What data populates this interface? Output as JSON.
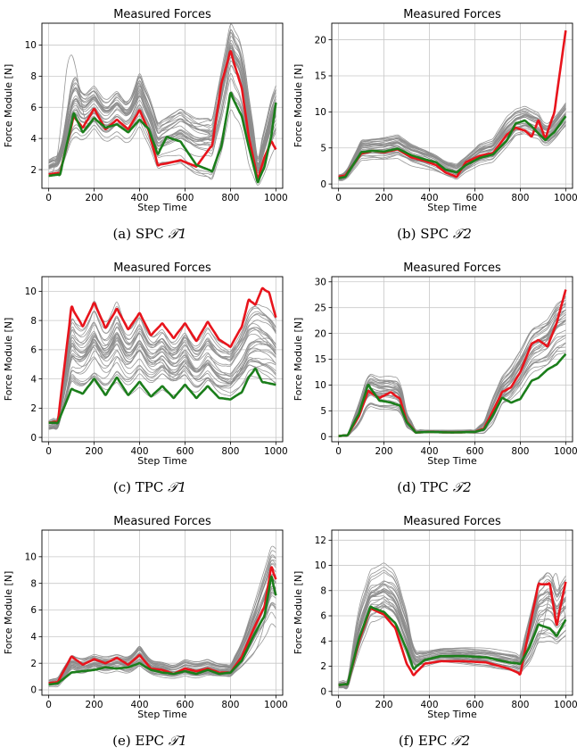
{
  "figure": {
    "panels": [
      {
        "caption_prefix": "(a) SPC",
        "caption_math": "𝒯1"
      },
      {
        "caption_prefix": "(b) SPC",
        "caption_math": "𝒯2"
      },
      {
        "caption_prefix": "(c) TPC",
        "caption_math": "𝒯1"
      },
      {
        "caption_prefix": "(d) TPC",
        "caption_math": "𝒯2"
      },
      {
        "caption_prefix": "(e) EPC",
        "caption_math": "𝒯1"
      },
      {
        "caption_prefix": "(f) EPC",
        "caption_math": "𝒯2"
      }
    ]
  },
  "colors": {
    "grey": "#8c8c8c",
    "red": "#e8141c",
    "green": "#1b7e1b",
    "grid": "#c8c8c8"
  },
  "chart_data": [
    {
      "type": "line",
      "title": "Measured Forces",
      "xlabel": "Step Time",
      "ylabel": "Force Module [N]",
      "xlim": [
        -30,
        1030
      ],
      "ylim": [
        0.8,
        11.4
      ],
      "xticks": [
        0,
        200,
        400,
        600,
        800,
        1000
      ],
      "yticks": [
        2,
        4,
        6,
        8,
        10
      ],
      "grid": true,
      "red": {
        "x": [
          0,
          50,
          110,
          150,
          200,
          250,
          300,
          350,
          400,
          440,
          480,
          520,
          580,
          650,
          720,
          760,
          800,
          850,
          880,
          920,
          950,
          980,
          1000
        ],
        "y": [
          1.7,
          1.8,
          5.4,
          4.7,
          5.9,
          4.6,
          5.2,
          4.6,
          5.8,
          4.5,
          2.3,
          2.4,
          2.6,
          2.2,
          3.6,
          7.5,
          9.6,
          7.2,
          4.2,
          1.4,
          2.8,
          3.8,
          3.3
        ]
      },
      "green": {
        "x": [
          0,
          50,
          110,
          150,
          200,
          250,
          300,
          350,
          400,
          440,
          480,
          520,
          580,
          650,
          720,
          760,
          800,
          850,
          880,
          920,
          950,
          980,
          1000
        ],
        "y": [
          1.6,
          1.7,
          5.6,
          4.4,
          5.3,
          4.7,
          4.9,
          4.4,
          5.2,
          4.6,
          3.0,
          4.1,
          3.8,
          2.3,
          1.9,
          3.5,
          6.9,
          5.4,
          3.5,
          1.2,
          2.2,
          4.2,
          6.3
        ]
      },
      "grey_band": {
        "x": [
          0,
          50,
          110,
          150,
          200,
          250,
          300,
          350,
          400,
          440,
          480,
          520,
          580,
          650,
          720,
          760,
          800,
          850,
          880,
          920,
          950,
          980,
          1000
        ],
        "y": [
          2.0,
          2.3,
          6.0,
          5.2,
          5.9,
          5.0,
          5.6,
          5.0,
          6.5,
          5.2,
          3.6,
          3.8,
          4.1,
          3.4,
          3.3,
          5.7,
          8.6,
          7.4,
          4.6,
          1.8,
          3.2,
          4.7,
          5.4
        ],
        "spread": [
          0.5,
          0.6,
          2.0,
          1.4,
          1.2,
          1.1,
          1.2,
          1.1,
          1.4,
          1.3,
          1.2,
          1.3,
          1.5,
          1.6,
          1.8,
          2.3,
          2.4,
          2.2,
          1.8,
          0.8,
          1.2,
          1.5,
          1.6
        ],
        "count": 30,
        "extra_peak": {
          "x": 100,
          "y": 10.9
        }
      }
    },
    {
      "type": "line",
      "title": "Measured Forces",
      "xlabel": "Step Time",
      "ylabel": "Force Module [N]",
      "xlim": [
        -30,
        1030
      ],
      "ylim": [
        -0.6,
        22.3
      ],
      "xticks": [
        0,
        200,
        400,
        600,
        800,
        1000
      ],
      "yticks": [
        0,
        5,
        10,
        15,
        20
      ],
      "grid": true,
      "red": {
        "x": [
          0,
          30,
          100,
          150,
          200,
          260,
          320,
          380,
          430,
          470,
          520,
          560,
          620,
          680,
          740,
          780,
          820,
          850,
          880,
          910,
          950,
          1000
        ],
        "y": [
          1.0,
          1.2,
          4.2,
          4.6,
          4.4,
          4.8,
          3.7,
          3.2,
          2.6,
          1.6,
          1.0,
          3.0,
          3.9,
          4.3,
          6.8,
          7.8,
          7.4,
          6.6,
          8.8,
          6.3,
          10.0,
          21.3
        ]
      },
      "green": {
        "x": [
          0,
          30,
          100,
          150,
          200,
          260,
          320,
          380,
          430,
          470,
          520,
          560,
          620,
          680,
          740,
          780,
          820,
          850,
          880,
          910,
          950,
          1000
        ],
        "y": [
          0.8,
          1.0,
          4.4,
          4.6,
          4.5,
          4.9,
          4.0,
          3.4,
          3.0,
          2.0,
          1.6,
          2.6,
          3.6,
          4.1,
          6.0,
          8.4,
          8.8,
          8.0,
          7.0,
          6.1,
          7.2,
          9.4
        ]
      },
      "grey_band": {
        "x": [
          0,
          30,
          100,
          150,
          200,
          260,
          320,
          380,
          430,
          470,
          520,
          560,
          620,
          680,
          740,
          780,
          820,
          850,
          880,
          910,
          950,
          1000
        ],
        "y": [
          0.9,
          1.1,
          4.8,
          5.0,
          5.0,
          5.3,
          4.2,
          3.6,
          3.0,
          2.2,
          1.8,
          2.8,
          4.2,
          4.8,
          7.3,
          8.6,
          9.0,
          8.6,
          8.2,
          6.8,
          7.8,
          9.8
        ],
        "spread": [
          0.4,
          0.5,
          1.2,
          1.2,
          1.3,
          1.3,
          1.2,
          1.1,
          1.0,
          0.9,
          1.0,
          1.0,
          1.3,
          1.4,
          1.8,
          1.6,
          1.6,
          1.6,
          1.5,
          1.3,
          1.4,
          1.5
        ],
        "count": 30
      }
    },
    {
      "type": "line",
      "title": "Measured Forces",
      "xlabel": "Step Time",
      "ylabel": "Force Module [N]",
      "xlim": [
        -30,
        1030
      ],
      "ylim": [
        -0.3,
        11.0
      ],
      "xticks": [
        0,
        200,
        400,
        600,
        800,
        1000
      ],
      "yticks": [
        0,
        2,
        4,
        6,
        8,
        10
      ],
      "grid": true,
      "red": {
        "x": [
          0,
          40,
          100,
          150,
          200,
          250,
          300,
          350,
          400,
          450,
          500,
          550,
          600,
          650,
          700,
          750,
          800,
          850,
          880,
          910,
          940,
          970,
          1000
        ],
        "y": [
          1.0,
          1.1,
          8.9,
          7.6,
          9.2,
          7.5,
          8.8,
          7.4,
          8.5,
          7.0,
          7.8,
          6.8,
          7.8,
          6.6,
          7.9,
          6.7,
          6.2,
          7.6,
          9.4,
          9.1,
          10.2,
          9.9,
          8.2
        ]
      },
      "green": {
        "x": [
          0,
          40,
          100,
          150,
          200,
          250,
          300,
          350,
          400,
          450,
          500,
          550,
          600,
          650,
          700,
          750,
          800,
          850,
          880,
          910,
          940,
          970,
          1000
        ],
        "y": [
          1.0,
          1.0,
          3.3,
          3.0,
          4.0,
          2.9,
          4.1,
          2.9,
          3.8,
          2.8,
          3.5,
          2.7,
          3.6,
          2.7,
          3.5,
          2.7,
          2.6,
          3.1,
          4.1,
          4.7,
          3.8,
          3.7,
          3.6
        ]
      },
      "grey_band": {
        "x": [
          0,
          40,
          100,
          150,
          200,
          250,
          300,
          350,
          400,
          450,
          500,
          550,
          600,
          650,
          700,
          750,
          800,
          850,
          880,
          910,
          940,
          970,
          1000
        ],
        "y": [
          0.8,
          1.0,
          5.8,
          5.3,
          6.4,
          5.2,
          6.4,
          5.1,
          6.1,
          5.0,
          5.6,
          4.8,
          5.7,
          4.7,
          5.6,
          4.7,
          4.5,
          5.4,
          6.3,
          6.5,
          6.2,
          6.0,
          5.4
        ],
        "spread": [
          0.3,
          0.4,
          2.0,
          1.8,
          2.2,
          1.8,
          2.2,
          1.8,
          2.1,
          1.8,
          1.9,
          1.7,
          2.0,
          1.7,
          1.9,
          1.7,
          1.6,
          1.9,
          2.1,
          2.4,
          2.3,
          2.2,
          2.0
        ],
        "count": 30
      }
    },
    {
      "type": "line",
      "title": "Measured Forces",
      "xlabel": "Step Time",
      "ylabel": "Force Module [N]",
      "xlim": [
        -30,
        1030
      ],
      "ylim": [
        -1.0,
        31.0
      ],
      "xticks": [
        0,
        200,
        400,
        600,
        800,
        1000
      ],
      "yticks": [
        0,
        5,
        10,
        15,
        20,
        25,
        30
      ],
      "grid": true,
      "red": {
        "x": [
          0,
          40,
          90,
          130,
          180,
          230,
          270,
          300,
          340,
          400,
          500,
          600,
          640,
          680,
          720,
          760,
          800,
          850,
          880,
          920,
          960,
          1000
        ],
        "y": [
          0.1,
          0.3,
          4.0,
          8.8,
          7.5,
          8.6,
          7.3,
          3.0,
          0.8,
          0.9,
          0.8,
          0.9,
          1.6,
          5.0,
          8.6,
          9.6,
          12.5,
          18.0,
          18.7,
          17.5,
          22.0,
          28.5
        ]
      },
      "green": {
        "x": [
          0,
          40,
          90,
          130,
          180,
          230,
          270,
          300,
          340,
          400,
          500,
          600,
          640,
          680,
          720,
          760,
          800,
          850,
          880,
          920,
          960,
          1000
        ],
        "y": [
          0.1,
          0.3,
          4.5,
          10.0,
          7.0,
          6.6,
          6.0,
          2.8,
          0.8,
          0.9,
          0.8,
          0.9,
          1.4,
          4.2,
          7.5,
          6.6,
          7.3,
          10.8,
          11.4,
          13.0,
          14.0,
          16.0
        ]
      },
      "grey_band": {
        "x": [
          0,
          40,
          90,
          130,
          180,
          230,
          270,
          300,
          340,
          400,
          500,
          600,
          640,
          680,
          720,
          760,
          800,
          850,
          880,
          920,
          960,
          1000
        ],
        "y": [
          0.1,
          0.3,
          4.5,
          9.3,
          8.6,
          8.6,
          8.0,
          3.3,
          1.0,
          1.0,
          1.0,
          1.0,
          1.8,
          5.0,
          8.8,
          10.5,
          13.0,
          17.0,
          17.5,
          18.5,
          21.0,
          22.0
        ],
        "spread": [
          0.1,
          0.2,
          1.8,
          2.6,
          2.5,
          2.6,
          2.5,
          1.2,
          0.3,
          0.2,
          0.2,
          0.3,
          1.0,
          2.4,
          2.5,
          3.0,
          3.5,
          4.0,
          4.2,
          4.5,
          5.0,
          5.5
        ],
        "count": 30
      }
    },
    {
      "type": "line",
      "title": "Measured Forces",
      "xlabel": "Step Time",
      "ylabel": "Force Module [N]",
      "xlim": [
        -30,
        1030
      ],
      "ylim": [
        -0.4,
        12.0
      ],
      "xticks": [
        0,
        200,
        400,
        600,
        800,
        1000
      ],
      "yticks": [
        0,
        2,
        4,
        6,
        8,
        10
      ],
      "grid": true,
      "red": {
        "x": [
          0,
          40,
          100,
          150,
          200,
          250,
          300,
          350,
          400,
          450,
          500,
          550,
          600,
          650,
          700,
          750,
          800,
          850,
          900,
          950,
          980,
          1000
        ],
        "y": [
          0.5,
          0.6,
          2.5,
          1.9,
          2.3,
          2.0,
          2.4,
          1.9,
          2.6,
          1.6,
          1.5,
          1.2,
          1.6,
          1.4,
          1.6,
          1.3,
          1.3,
          2.5,
          4.5,
          6.3,
          9.2,
          8.3
        ]
      },
      "green": {
        "x": [
          0,
          40,
          100,
          150,
          200,
          250,
          300,
          350,
          400,
          450,
          500,
          550,
          600,
          650,
          700,
          750,
          800,
          850,
          900,
          950,
          980,
          1000
        ],
        "y": [
          0.4,
          0.5,
          1.3,
          1.4,
          1.5,
          1.7,
          1.6,
          1.7,
          2.0,
          1.5,
          1.3,
          1.2,
          1.4,
          1.2,
          1.5,
          1.2,
          1.3,
          2.2,
          4.0,
          5.6,
          8.5,
          7.1
        ]
      },
      "grey_band": {
        "x": [
          0,
          40,
          100,
          150,
          200,
          250,
          300,
          350,
          400,
          450,
          500,
          550,
          600,
          650,
          700,
          750,
          800,
          850,
          900,
          950,
          980,
          1000
        ],
        "y": [
          0.5,
          0.6,
          2.0,
          1.8,
          2.1,
          1.9,
          2.1,
          1.9,
          2.6,
          1.7,
          1.5,
          1.3,
          1.6,
          1.4,
          1.6,
          1.4,
          1.4,
          2.6,
          4.4,
          6.4,
          7.8,
          7.6
        ],
        "spread": [
          0.2,
          0.3,
          0.6,
          0.6,
          0.6,
          0.6,
          0.6,
          0.6,
          0.8,
          0.5,
          0.5,
          0.4,
          0.5,
          0.5,
          0.5,
          0.4,
          0.4,
          0.8,
          1.5,
          2.2,
          2.5,
          2.6
        ],
        "count": 30,
        "extra_peak": {
          "x": 1000,
          "y": 11.5
        }
      }
    },
    {
      "type": "line",
      "title": "Measured Forces",
      "xlabel": "Step Time",
      "ylabel": "Force Module [N]",
      "xlim": [
        -30,
        1030
      ],
      "ylim": [
        -0.3,
        12.8
      ],
      "xticks": [
        0,
        200,
        400,
        600,
        800,
        1000
      ],
      "yticks": [
        0,
        2,
        4,
        6,
        8,
        10,
        12
      ],
      "grid": true,
      "red": {
        "x": [
          0,
          40,
          90,
          140,
          200,
          250,
          300,
          330,
          380,
          450,
          550,
          650,
          750,
          800,
          840,
          880,
          930,
          960,
          1000
        ],
        "y": [
          0.5,
          0.6,
          4.0,
          6.6,
          6.1,
          5.0,
          2.2,
          1.3,
          2.2,
          2.4,
          2.4,
          2.3,
          1.8,
          1.4,
          5.0,
          8.5,
          8.5,
          5.3,
          8.7
        ]
      },
      "green": {
        "x": [
          0,
          40,
          90,
          140,
          200,
          250,
          300,
          330,
          380,
          450,
          550,
          650,
          750,
          800,
          840,
          880,
          930,
          960,
          1000
        ],
        "y": [
          0.5,
          0.6,
          4.2,
          6.7,
          6.3,
          5.4,
          3.3,
          1.8,
          2.5,
          2.8,
          2.8,
          2.7,
          2.3,
          2.2,
          3.5,
          5.3,
          5.0,
          4.4,
          5.7
        ]
      },
      "grey_band": {
        "x": [
          0,
          40,
          90,
          140,
          200,
          250,
          300,
          330,
          380,
          450,
          550,
          650,
          750,
          800,
          840,
          880,
          930,
          960,
          1000
        ],
        "y": [
          0.5,
          0.6,
          4.8,
          7.2,
          7.6,
          7.0,
          4.5,
          2.4,
          2.6,
          2.9,
          2.9,
          2.8,
          2.5,
          2.3,
          4.3,
          6.5,
          7.0,
          6.0,
          6.8
        ],
        "spread": [
          0.2,
          0.3,
          1.5,
          1.8,
          2.0,
          2.0,
          1.5,
          0.8,
          0.6,
          0.6,
          0.6,
          0.6,
          0.6,
          0.6,
          1.5,
          2.2,
          2.6,
          2.0,
          2.3
        ],
        "count": 30,
        "extra_peak": {
          "x": 950,
          "y": 12.0
        }
      }
    }
  ]
}
